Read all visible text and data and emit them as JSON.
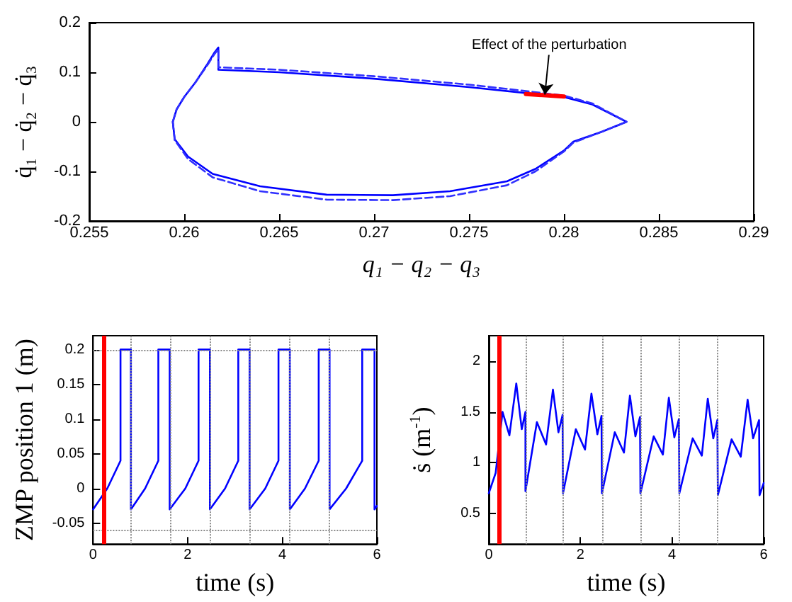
{
  "chart_data": [
    {
      "type": "line",
      "xlabel": "q₁ − q₂ − q₃",
      "ylabel": "q̇₁ − q̇₂ − q̇₃",
      "xlim": [
        0.255,
        0.29
      ],
      "xticks": [
        0.255,
        0.26,
        0.265,
        0.27,
        0.275,
        0.28,
        0.285,
        0.29
      ],
      "ylim": [
        -0.2,
        0.2
      ],
      "yticks": [
        -0.2,
        -0.1,
        0,
        0.1,
        0.2
      ],
      "series": [
        {
          "color": "#0000ff",
          "line_style": "solid",
          "x": [
            0.2594,
            0.2596,
            0.26,
            0.2606,
            0.2612,
            0.2616,
            0.2618,
            0.2618,
            0.265,
            0.27,
            0.275,
            0.278,
            0.28,
            0.2815,
            0.2833,
            null,
            0.2594,
            0.2595,
            0.2602,
            0.2615,
            0.264,
            0.2675,
            0.271,
            0.274,
            0.277,
            0.2785,
            0.28,
            0.2805,
            0.282,
            0.2833
          ],
          "values": [
            0,
            0.025,
            0.05,
            0.08,
            0.115,
            0.14,
            0.15,
            0.105,
            0.1,
            0.087,
            0.07,
            0.058,
            0.05,
            0.035,
            0,
            null,
            0,
            -0.035,
            -0.07,
            -0.105,
            -0.13,
            -0.147,
            -0.148,
            -0.14,
            -0.12,
            -0.095,
            -0.058,
            -0.04,
            -0.02,
            0
          ]
        },
        {
          "color": "#3030ff",
          "line_style": "dashed",
          "x": [
            0.2594,
            0.2596,
            0.26,
            0.2606,
            0.2612,
            0.2616,
            0.2618,
            0.2618,
            0.265,
            0.27,
            0.275,
            0.278,
            0.28,
            0.2815,
            0.2833,
            null,
            0.2594,
            0.2595,
            0.2602,
            0.2615,
            0.264,
            0.2675,
            0.271,
            0.274,
            0.277,
            0.2785,
            0.28,
            0.2805,
            0.282,
            0.2833
          ],
          "values": [
            0,
            0.025,
            0.05,
            0.08,
            0.113,
            0.137,
            0.147,
            0.11,
            0.105,
            0.092,
            0.075,
            0.062,
            0.053,
            0.037,
            0,
            null,
            0,
            -0.037,
            -0.075,
            -0.112,
            -0.14,
            -0.157,
            -0.158,
            -0.15,
            -0.128,
            -0.1,
            -0.06,
            -0.042,
            -0.02,
            0
          ]
        },
        {
          "color": "#ff0000",
          "line_style": "solid",
          "x": [
            0.278,
            0.28
          ],
          "values": [
            0.056,
            0.051
          ]
        }
      ],
      "annotations": [
        {
          "text": "Effect of the perturbation",
          "x": 0.279,
          "y": 0.055
        }
      ]
    },
    {
      "type": "line",
      "xlabel": "time (s)",
      "ylabel": "ZMP position 1 (m)",
      "xlim": [
        0,
        6
      ],
      "xticks": [
        0,
        2,
        4,
        6
      ],
      "ylim": [
        -0.08,
        0.22
      ],
      "yticks": [
        -0.05,
        0,
        0.05,
        0.1,
        0.15,
        0.2
      ],
      "series": [
        {
          "color": "#0000ff",
          "x": [
            0,
            0.3,
            0.58,
            0.58,
            0.8,
            0.8,
            1.1,
            1.38,
            1.38,
            1.62,
            1.62,
            1.95,
            2.23,
            2.23,
            2.47,
            2.47,
            2.79,
            3.07,
            3.07,
            3.31,
            3.31,
            3.64,
            3.92,
            3.92,
            4.16,
            4.16,
            4.48,
            4.77,
            4.77,
            5.0,
            5.0,
            5.35,
            5.69,
            5.69,
            5.95,
            5.95,
            6
          ],
          "values": [
            -0.03,
            0,
            0.04,
            0.2,
            0.2,
            -0.03,
            0,
            0.04,
            0.2,
            0.2,
            -0.03,
            0,
            0.04,
            0.2,
            0.2,
            -0.03,
            0,
            0.04,
            0.2,
            0.2,
            -0.03,
            0,
            0.04,
            0.2,
            0.2,
            -0.03,
            0,
            0.04,
            0.2,
            0.2,
            -0.03,
            0,
            0.04,
            0.2,
            0.2,
            -0.03,
            -0.025
          ]
        }
      ],
      "ref_lines": [
        {
          "axis": "y",
          "value": 0.2,
          "color": "#888888",
          "line_style": "dotted"
        },
        {
          "axis": "y",
          "value": -0.06,
          "color": "#888888",
          "line_style": "dotted"
        },
        {
          "axis": "x",
          "value": 0.8,
          "color": "#888888",
          "line_style": "dotted"
        },
        {
          "axis": "x",
          "value": 1.62,
          "color": "#888888",
          "line_style": "dotted"
        },
        {
          "axis": "x",
          "value": 2.47,
          "color": "#888888",
          "line_style": "dotted"
        },
        {
          "axis": "x",
          "value": 3.31,
          "color": "#888888",
          "line_style": "dotted"
        },
        {
          "axis": "x",
          "value": 4.16,
          "color": "#888888",
          "line_style": "dotted"
        },
        {
          "axis": "x",
          "value": 5.0,
          "color": "#888888",
          "line_style": "dotted"
        },
        {
          "axis": "x",
          "value": 0.22,
          "color": "#ff0000",
          "line_style": "solid"
        }
      ]
    },
    {
      "type": "line",
      "xlabel": "time (s)",
      "ylabel": "ṡ (m$^{-1}$)",
      "xlim": [
        0,
        6
      ],
      "xticks": [
        0,
        2,
        4,
        6
      ],
      "ylim": [
        0.2,
        2.25
      ],
      "yticks": [
        0.5,
        1,
        1.5,
        2
      ],
      "series": [
        {
          "color": "#0000ff",
          "x": [
            0,
            0.15,
            0.3,
            0.45,
            0.6,
            0.72,
            0.8,
            0.8,
            1.05,
            1.25,
            1.4,
            1.52,
            1.61,
            1.62,
            1.9,
            2.1,
            2.24,
            2.37,
            2.46,
            2.47,
            2.75,
            2.95,
            3.08,
            3.2,
            3.3,
            3.31,
            3.6,
            3.8,
            3.93,
            4.05,
            4.15,
            4.16,
            4.45,
            4.65,
            4.78,
            4.9,
            4.99,
            5.0,
            5.3,
            5.5,
            5.65,
            5.77,
            5.9,
            5.91,
            6
          ],
          "values": [
            0.7,
            0.9,
            1.5,
            1.27,
            1.78,
            1.33,
            1.5,
            0.72,
            1.4,
            1.18,
            1.72,
            1.3,
            1.47,
            0.7,
            1.33,
            1.13,
            1.68,
            1.28,
            1.46,
            0.7,
            1.3,
            1.1,
            1.66,
            1.26,
            1.45,
            0.7,
            1.26,
            1.08,
            1.64,
            1.25,
            1.43,
            0.7,
            1.24,
            1.07,
            1.63,
            1.24,
            1.42,
            0.68,
            1.23,
            1.06,
            1.62,
            1.24,
            1.42,
            0.68,
            0.8
          ]
        }
      ],
      "ref_lines": [
        {
          "axis": "x",
          "value": 0.8,
          "color": "#888888",
          "line_style": "dotted"
        },
        {
          "axis": "x",
          "value": 1.62,
          "color": "#888888",
          "line_style": "dotted"
        },
        {
          "axis": "x",
          "value": 2.47,
          "color": "#888888",
          "line_style": "dotted"
        },
        {
          "axis": "x",
          "value": 3.31,
          "color": "#888888",
          "line_style": "dotted"
        },
        {
          "axis": "x",
          "value": 4.16,
          "color": "#888888",
          "line_style": "dotted"
        },
        {
          "axis": "x",
          "value": 5.0,
          "color": "#888888",
          "line_style": "dotted"
        },
        {
          "axis": "x",
          "value": 0.22,
          "color": "#ff0000",
          "line_style": "solid"
        }
      ]
    }
  ]
}
